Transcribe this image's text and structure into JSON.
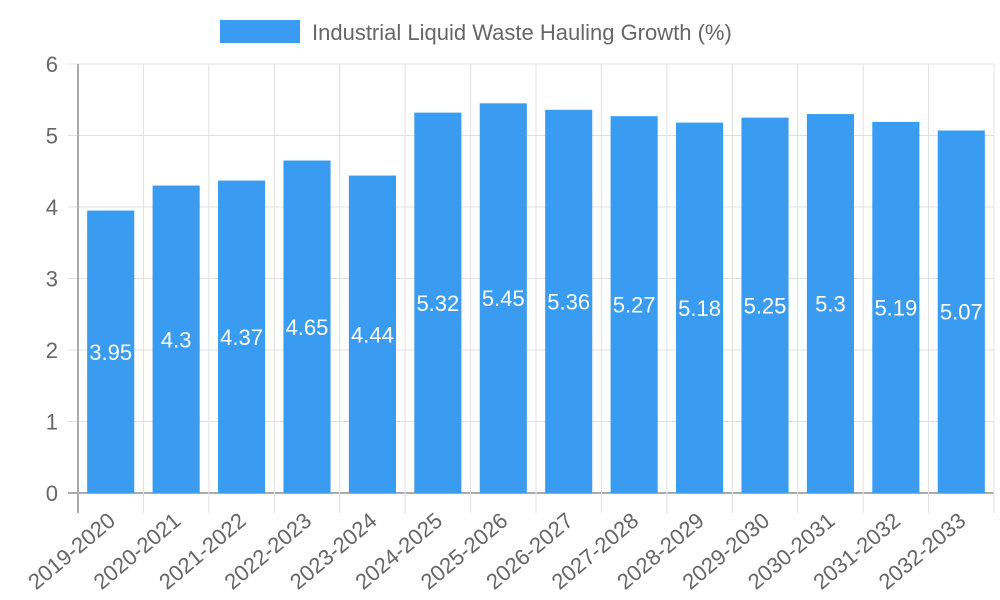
{
  "chart_data": {
    "type": "bar",
    "title": "",
    "legend": [
      {
        "label": "Industrial Liquid Waste Hauling Growth (%)",
        "color": "#3a9cf0"
      }
    ],
    "legend_position": "top",
    "categories": [
      "2019-2020",
      "2020-2021",
      "2021-2022",
      "2022-2023",
      "2023-2024",
      "2024-2025",
      "2025-2026",
      "2026-2027",
      "2027-2028",
      "2028-2029",
      "2029-2030",
      "2030-2031",
      "2031-2032",
      "2032-2033"
    ],
    "series": [
      {
        "name": "Industrial Liquid Waste Hauling Growth (%)",
        "color": "#3a9cf0",
        "values": [
          3.95,
          4.3,
          4.37,
          4.65,
          4.44,
          5.32,
          5.45,
          5.36,
          5.27,
          5.18,
          5.25,
          5.3,
          5.19,
          5.07
        ]
      }
    ],
    "data_labels": [
      "3.95",
      "4.3",
      "4.37",
      "4.65",
      "4.44",
      "5.32",
      "5.45",
      "5.36",
      "5.27",
      "5.18",
      "5.25",
      "5.3",
      "5.19",
      "5.07"
    ],
    "xlabel": "",
    "ylabel": "",
    "ylim": [
      0,
      6
    ],
    "yticks": [
      "0",
      "1",
      "2",
      "3",
      "4",
      "5",
      "6"
    ],
    "grid": true
  }
}
